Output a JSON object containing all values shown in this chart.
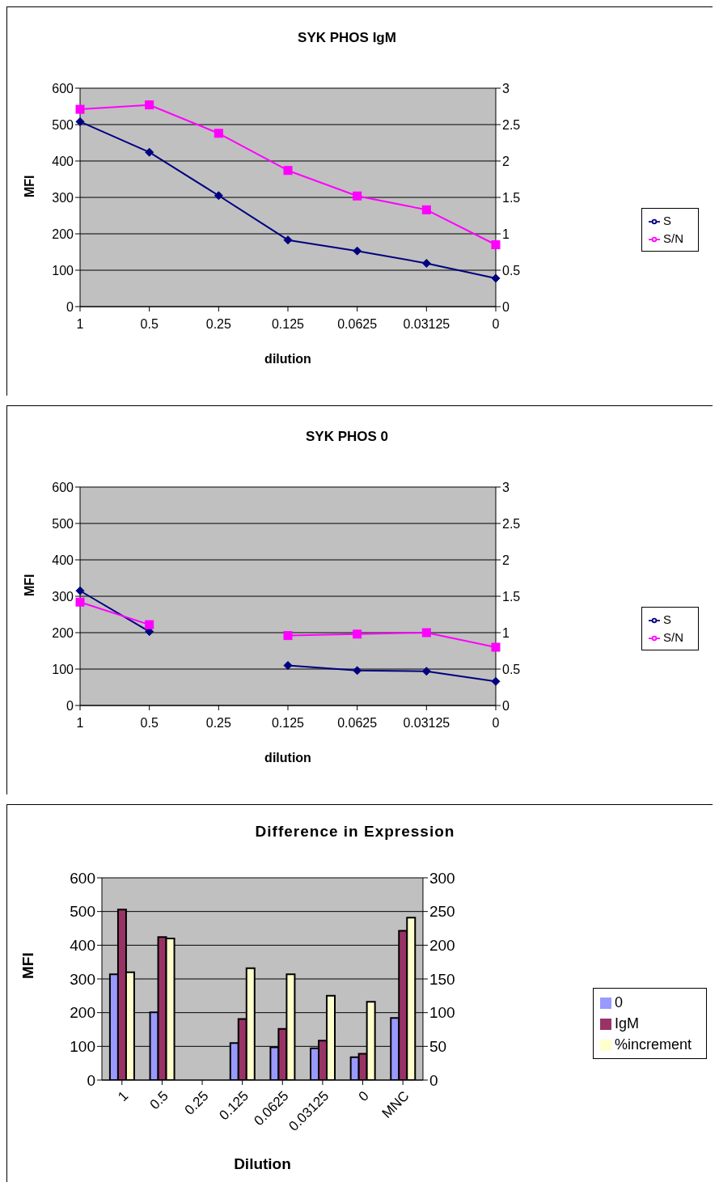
{
  "chart_data": [
    {
      "type": "line",
      "title": "SYK PHOS IgM",
      "xlabel": "dilution",
      "ylabel": "MFI",
      "categories": [
        "1",
        "0.5",
        "0.25",
        "0.125",
        "0.0625",
        "0.03125",
        "0"
      ],
      "ylim": [
        0,
        600
      ],
      "yticks": [
        0,
        100,
        200,
        300,
        400,
        500,
        600
      ],
      "y2lim": [
        0,
        3
      ],
      "y2ticks": [
        0,
        0.5,
        1,
        1.5,
        2,
        2.5,
        3
      ],
      "grid": "y",
      "legend": "right",
      "series": [
        {
          "name": "S",
          "color": "#000080",
          "marker": "diamond",
          "values": [
            508,
            424,
            305,
            183,
            153,
            119,
            78
          ]
        },
        {
          "name": "S/N",
          "color": "#ff00ff",
          "marker": "square",
          "axis": "y2",
          "values": [
            2.71,
            2.77,
            2.38,
            1.87,
            1.52,
            1.33,
            0.85
          ]
        }
      ]
    },
    {
      "type": "line",
      "title": "SYK PHOS 0",
      "xlabel": "dilution",
      "ylabel": "MFI",
      "categories": [
        "1",
        "0.5",
        "0.25",
        "0.125",
        "0.0625",
        "0.03125",
        "0"
      ],
      "ylim": [
        0,
        600
      ],
      "yticks": [
        0,
        100,
        200,
        300,
        400,
        500,
        600
      ],
      "y2lim": [
        0,
        3
      ],
      "y2ticks": [
        0,
        0.5,
        1,
        1.5,
        2,
        2.5,
        3
      ],
      "grid": "y",
      "legend": "right",
      "series": [
        {
          "name": "S",
          "color": "#000080",
          "marker": "diamond",
          "values": [
            315,
            203,
            null,
            110,
            96,
            94,
            66
          ]
        },
        {
          "name": "S/N",
          "color": "#ff00ff",
          "marker": "square",
          "axis": "y2",
          "values": [
            1.42,
            1.11,
            null,
            0.96,
            0.98,
            1.0,
            0.8
          ]
        }
      ]
    },
    {
      "type": "bar",
      "title": "Difference in Expression",
      "xlabel": "Dilution",
      "ylabel": "MFI",
      "categories": [
        "1",
        "0.5",
        "0.25",
        "0.125",
        "0.0625",
        "0.03125",
        "0",
        "MNC"
      ],
      "ylim": [
        0,
        600
      ],
      "yticks": [
        0,
        100,
        200,
        300,
        400,
        500,
        600
      ],
      "y2lim": [
        0,
        300
      ],
      "y2ticks": [
        0,
        50,
        100,
        150,
        200,
        250,
        300
      ],
      "grid": "y",
      "legend": "right",
      "series": [
        {
          "name": "0",
          "color": "#9999ff",
          "values": [
            314,
            201,
            null,
            110,
            97,
            94,
            68,
            184
          ]
        },
        {
          "name": "IgM",
          "color": "#993366",
          "values": [
            506,
            424,
            null,
            181,
            152,
            117,
            78,
            443
          ]
        },
        {
          "name": "%increment",
          "color": "#ffffcc",
          "axis": "y2",
          "values": [
            160,
            210,
            null,
            166,
            157,
            125,
            116,
            241
          ]
        }
      ]
    }
  ]
}
